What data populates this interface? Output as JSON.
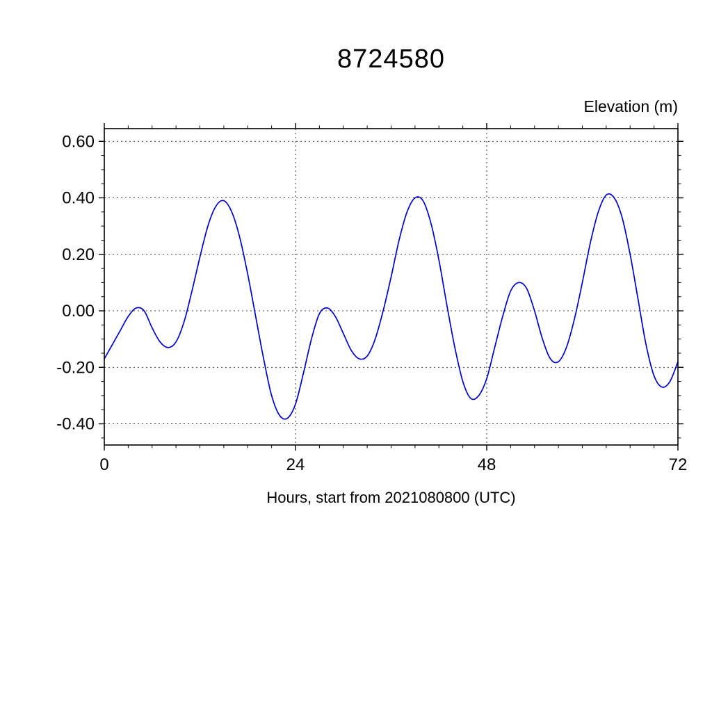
{
  "chart_data": {
    "type": "line",
    "title": "8724580",
    "xlabel": "Hours, start from 2021080800 (UTC)",
    "ylabel": "Elevation (m)",
    "xlim": [
      0,
      72
    ],
    "ylim": [
      -0.475,
      0.645
    ],
    "xticks": [
      0,
      24,
      48,
      72
    ],
    "xtick_labels": [
      "0",
      "24",
      "48",
      "72"
    ],
    "yticks": [
      0.6,
      0.4,
      0.2,
      0.0,
      -0.2,
      -0.4
    ],
    "ytick_labels": [
      "0.60",
      "0.40",
      "0.20",
      "0.00",
      "-0.20",
      "-0.40"
    ],
    "x_minor_step": 3,
    "y_minor_step": 0.05,
    "grid": true,
    "grid_style": "dashed",
    "legend": "none",
    "line_color": "#0000c8",
    "frame_color": "#000000",
    "series": [
      {
        "name": "elevation",
        "x": [
          0,
          1,
          2,
          3,
          4,
          5,
          6,
          7,
          8,
          9,
          10,
          11,
          12,
          13,
          14,
          15,
          16,
          17,
          18,
          19,
          20,
          21,
          22,
          23,
          24,
          25,
          26,
          27,
          28,
          29,
          30,
          31,
          32,
          33,
          34,
          35,
          36,
          37,
          38,
          39,
          40,
          41,
          42,
          43,
          44,
          45,
          46,
          47,
          48,
          49,
          50,
          51,
          52,
          53,
          54,
          55,
          56,
          57,
          58,
          59,
          60,
          61,
          62,
          63,
          64,
          65,
          66,
          67,
          68,
          69,
          70,
          71,
          72
        ],
        "values": [
          -0.17,
          -0.12,
          -0.07,
          -0.02,
          0.01,
          0.0,
          -0.06,
          -0.11,
          -0.13,
          -0.11,
          -0.04,
          0.07,
          0.19,
          0.3,
          0.37,
          0.39,
          0.35,
          0.26,
          0.13,
          -0.02,
          -0.17,
          -0.3,
          -0.37,
          -0.38,
          -0.33,
          -0.22,
          -0.1,
          -0.01,
          0.01,
          -0.02,
          -0.08,
          -0.14,
          -0.17,
          -0.16,
          -0.1,
          0.0,
          0.12,
          0.25,
          0.35,
          0.4,
          0.39,
          0.31,
          0.18,
          0.02,
          -0.13,
          -0.25,
          -0.31,
          -0.3,
          -0.24,
          -0.13,
          -0.02,
          0.07,
          0.1,
          0.08,
          0.0,
          -0.1,
          -0.17,
          -0.18,
          -0.13,
          -0.03,
          0.1,
          0.24,
          0.35,
          0.41,
          0.4,
          0.33,
          0.2,
          0.04,
          -0.12,
          -0.23,
          -0.27,
          -0.25,
          -0.18
        ]
      }
    ]
  }
}
